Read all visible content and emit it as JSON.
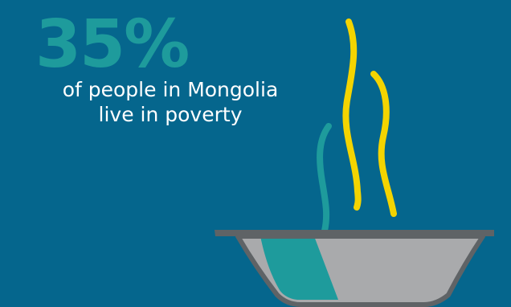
{
  "infographic": {
    "percentage": "35%",
    "caption_line_1": "of people in Mongolia",
    "caption_line_2": "live in poverty"
  },
  "illustration": {
    "subject": "steaming-bowl",
    "colors": {
      "background": "#05668d",
      "accent_teal": "#1e9b9c",
      "steam_yellow": "#f4d400",
      "bowl_gray": "#a9aaac",
      "bowl_rim": "#5f6366"
    }
  }
}
